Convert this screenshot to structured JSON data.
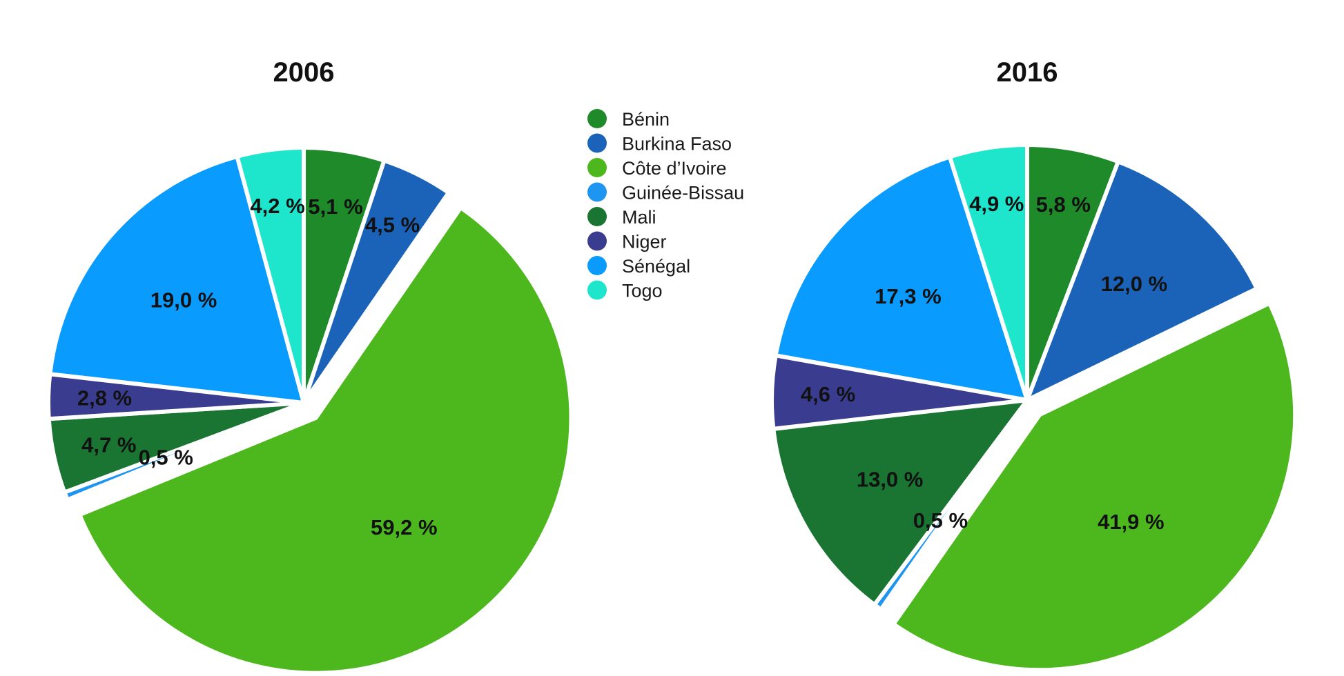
{
  "legend": {
    "placement": "top-center",
    "entries": [
      "Bénin",
      "Burkina Faso",
      "Côte d’Ivoire",
      "Guinée-Bissau",
      "Mali",
      "Niger",
      "Sénégal",
      "Togo"
    ]
  },
  "colors": {
    "Bénin": "#1e8a2a",
    "Burkina Faso": "#1b63b8",
    "Côte d’Ivoire": "#4db81e",
    "Guinée-Bissau": "#1e95f0",
    "Mali": "#1a7432",
    "Niger": "#3a3d8f",
    "Sénégal": "#0a9bff",
    "Togo": "#1de6cc"
  },
  "chart_data": [
    {
      "type": "pie",
      "title": "2006",
      "exploded": "Côte d’Ivoire",
      "slices": [
        {
          "name": "Bénin",
          "value": 5.1,
          "label": "5,1 %"
        },
        {
          "name": "Burkina Faso",
          "value": 4.5,
          "label": "4,5 %"
        },
        {
          "name": "Côte d’Ivoire",
          "value": 59.2,
          "label": "59,2 %"
        },
        {
          "name": "Guinée-Bissau",
          "value": 0.5,
          "label": "0,5 %"
        },
        {
          "name": "Mali",
          "value": 4.7,
          "label": "4,7 %"
        },
        {
          "name": "Niger",
          "value": 2.8,
          "label": "2,8 %"
        },
        {
          "name": "Sénégal",
          "value": 19.0,
          "label": "19,0 %"
        },
        {
          "name": "Togo",
          "value": 4.2,
          "label": "4,2 %"
        }
      ]
    },
    {
      "type": "pie",
      "title": "2016",
      "exploded": "Côte d’Ivoire",
      "slices": [
        {
          "name": "Bénin",
          "value": 5.8,
          "label": "5,8 %"
        },
        {
          "name": "Burkina Faso",
          "value": 12.0,
          "label": "12,0 %"
        },
        {
          "name": "Côte d’Ivoire",
          "value": 41.9,
          "label": "41,9 %"
        },
        {
          "name": "Guinée-Bissau",
          "value": 0.5,
          "label": "0,5 %"
        },
        {
          "name": "Mali",
          "value": 13.0,
          "label": "13,0 %"
        },
        {
          "name": "Niger",
          "value": 4.6,
          "label": "4,6 %"
        },
        {
          "name": "Sénégal",
          "value": 17.3,
          "label": "17,3 %"
        },
        {
          "name": "Togo",
          "value": 4.9,
          "label": "4,9 %"
        }
      ]
    }
  ]
}
